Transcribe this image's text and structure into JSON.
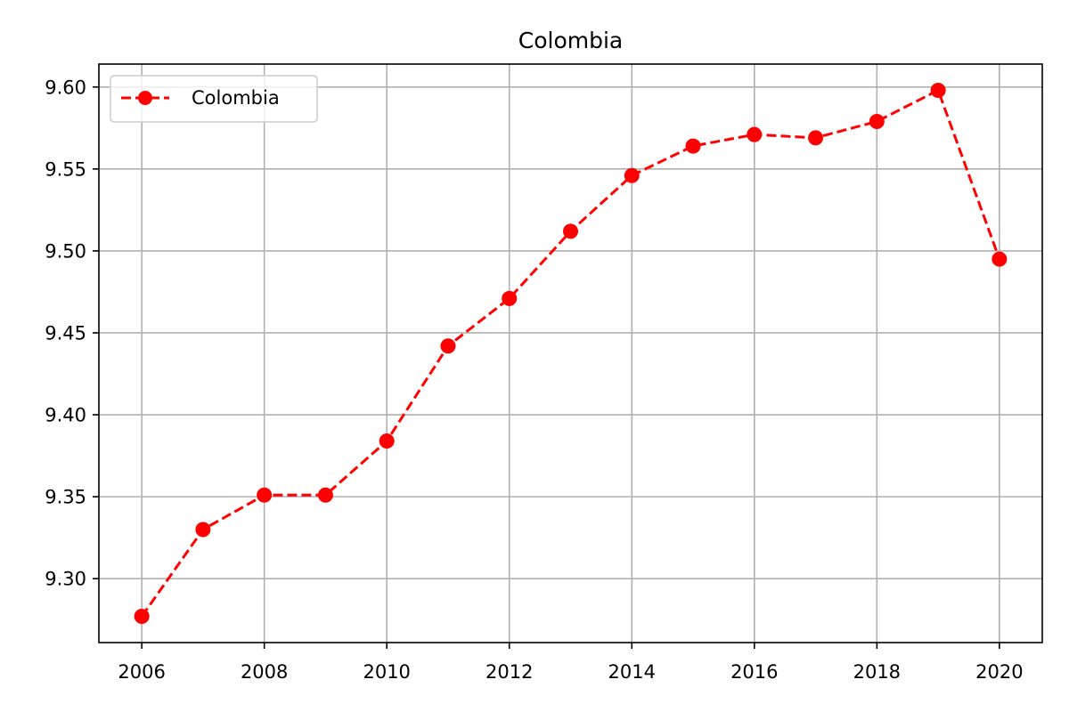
{
  "chart_data": {
    "type": "line",
    "title": "Colombia",
    "xlabel": "",
    "ylabel": "",
    "x": [
      2006,
      2007,
      2008,
      2009,
      2010,
      2011,
      2012,
      2013,
      2014,
      2015,
      2016,
      2017,
      2018,
      2019,
      2020
    ],
    "series": [
      {
        "name": "Colombia",
        "values": [
          9.277,
          9.33,
          9.351,
          9.351,
          9.384,
          9.442,
          9.471,
          9.512,
          9.546,
          9.564,
          9.571,
          9.569,
          9.579,
          9.598,
          9.495
        ],
        "color": "#ff0000",
        "line_style": "dashed",
        "marker": "circle"
      }
    ],
    "xlim": [
      2005.3,
      2020.7
    ],
    "ylim": [
      9.261,
      9.614
    ],
    "x_ticks": [
      "2006",
      "2008",
      "2010",
      "2012",
      "2014",
      "2016",
      "2018",
      "2020"
    ],
    "y_ticks": [
      "9.30",
      "9.35",
      "9.40",
      "9.45",
      "9.50",
      "9.55",
      "9.60"
    ],
    "grid": true,
    "legend_position": "upper-left",
    "colors": {
      "grid": "#b0b0b0",
      "axes": "#000000"
    }
  }
}
